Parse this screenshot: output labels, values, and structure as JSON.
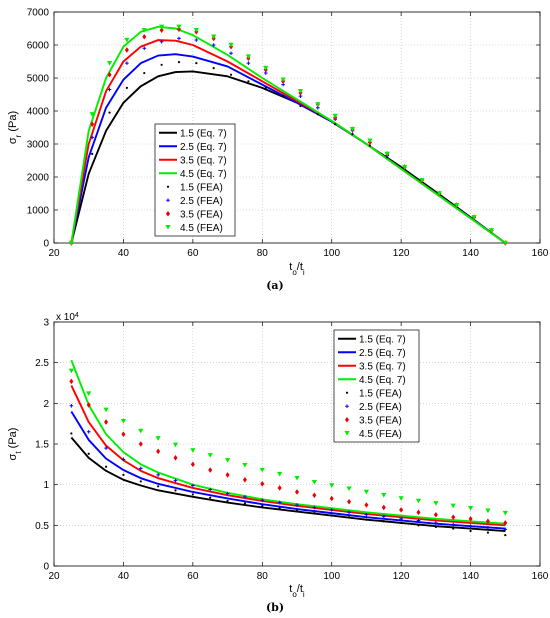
{
  "chart_data": [
    {
      "type": "line",
      "caption": "(a)",
      "ylabel_main": "σ",
      "ylabel_sub": "r",
      "ylabel_unit": " (Pa)",
      "xlabel_main": "t",
      "xlabel_sub1": "o",
      "xlabel_mid": "/t",
      "xlabel_sub2": "i",
      "xlim": [
        20,
        160
      ],
      "ylim": [
        0,
        7000
      ],
      "xticks": [
        20,
        40,
        60,
        80,
        100,
        120,
        140,
        160
      ],
      "yticks": [
        0,
        1000,
        2000,
        3000,
        4000,
        5000,
        6000,
        7000
      ],
      "grid": true,
      "legend_position": "center-left",
      "series": [
        {
          "name": "1.5 (Eq. 7)",
          "style": "line",
          "color": "#000000",
          "x": [
            25,
            30,
            35,
            40,
            45,
            50,
            55,
            60,
            70,
            80,
            90,
            100,
            110,
            120,
            130,
            140,
            150
          ],
          "y": [
            0,
            2100,
            3400,
            4250,
            4750,
            5050,
            5180,
            5200,
            5050,
            4700,
            4250,
            3680,
            3000,
            2300,
            1550,
            780,
            0
          ]
        },
        {
          "name": "2.5 (Eq. 7)",
          "style": "line",
          "color": "#0000ff",
          "x": [
            25,
            30,
            35,
            40,
            45,
            50,
            55,
            60,
            70,
            80,
            90,
            100,
            110,
            120,
            130,
            140,
            150
          ],
          "y": [
            0,
            2600,
            4100,
            4950,
            5450,
            5680,
            5720,
            5650,
            5350,
            4800,
            4250,
            3680,
            3000,
            2250,
            1500,
            760,
            0
          ]
        },
        {
          "name": "3.5 (Eq. 7)",
          "style": "line",
          "color": "#ff0000",
          "x": [
            25,
            30,
            35,
            40,
            45,
            50,
            55,
            60,
            70,
            80,
            90,
            100,
            110,
            120,
            130,
            140,
            150
          ],
          "y": [
            0,
            3000,
            4600,
            5500,
            5950,
            6150,
            6130,
            6000,
            5500,
            4900,
            4300,
            3700,
            3000,
            2250,
            1500,
            750,
            0
          ]
        },
        {
          "name": "4.5 (Eq. 7)",
          "style": "line",
          "color": "#00ee00",
          "x": [
            25,
            30,
            35,
            40,
            45,
            50,
            55,
            60,
            70,
            80,
            90,
            100,
            110,
            120,
            130,
            140,
            150
          ],
          "y": [
            0,
            3400,
            5000,
            5950,
            6400,
            6550,
            6500,
            6300,
            5700,
            5000,
            4350,
            3700,
            3000,
            2250,
            1500,
            750,
            0
          ]
        },
        {
          "name": "1.5 (FEA)",
          "style": "dot",
          "color": "#000000",
          "x": [
            25,
            31,
            36,
            41,
            46,
            51,
            56,
            61,
            66,
            71,
            76,
            81,
            86,
            91,
            96,
            101,
            106,
            111,
            116,
            121,
            126,
            131,
            136,
            141,
            146,
            150
          ],
          "y": [
            0,
            2700,
            3950,
            4700,
            5150,
            5400,
            5480,
            5450,
            5300,
            5100,
            4900,
            4700,
            4450,
            4150,
            3900,
            3600,
            3300,
            2950,
            2600,
            2250,
            1850,
            1500,
            1150,
            780,
            380,
            0
          ]
        },
        {
          "name": "2.5 (FEA)",
          "style": "plus",
          "color": "#0000ff",
          "x": [
            25,
            31,
            36,
            41,
            46,
            51,
            56,
            61,
            66,
            71,
            76,
            81,
            86,
            91,
            96,
            101,
            106,
            111,
            116,
            121,
            126,
            131,
            136,
            141,
            146,
            150
          ],
          "y": [
            0,
            3200,
            4650,
            5450,
            5900,
            6100,
            6200,
            6150,
            6000,
            5750,
            5450,
            5150,
            4800,
            4450,
            4100,
            3750,
            3400,
            3050,
            2650,
            2300,
            1900,
            1500,
            1150,
            780,
            380,
            0
          ]
        },
        {
          "name": "3.5 (FEA)",
          "style": "diamond",
          "color": "#ee0000",
          "x": [
            25,
            31,
            36,
            41,
            46,
            51,
            56,
            61,
            66,
            71,
            76,
            81,
            86,
            91,
            96,
            101,
            106,
            111,
            116,
            121,
            126,
            131,
            136,
            141,
            146,
            150
          ],
          "y": [
            0,
            3600,
            5100,
            5850,
            6250,
            6450,
            6480,
            6400,
            6200,
            5950,
            5600,
            5250,
            4900,
            4550,
            4200,
            3800,
            3450,
            3050,
            2700,
            2300,
            1900,
            1500,
            1150,
            780,
            380,
            0
          ]
        },
        {
          "name": "4.5 (FEA)",
          "style": "triangle",
          "color": "#00ee00",
          "x": [
            25,
            31,
            36,
            41,
            46,
            51,
            56,
            61,
            66,
            71,
            76,
            81,
            86,
            91,
            96,
            101,
            106,
            111,
            116,
            121,
            126,
            131,
            136,
            141,
            146,
            150
          ],
          "y": [
            0,
            3900,
            5450,
            6150,
            6450,
            6550,
            6550,
            6450,
            6250,
            6000,
            5650,
            5300,
            4950,
            4600,
            4200,
            3850,
            3450,
            3100,
            2700,
            2300,
            1900,
            1500,
            1150,
            780,
            380,
            0
          ]
        }
      ]
    },
    {
      "type": "line",
      "caption": "(b)",
      "ylabel_main": "σ",
      "ylabel_sub": "t",
      "ylabel_unit": " (Pa)",
      "xlabel_main": "t",
      "xlabel_sub1": "o",
      "xlabel_mid": "/t",
      "xlabel_sub2": "i",
      "exponent_base": "x 10",
      "exponent_power": "4",
      "xlim": [
        20,
        160
      ],
      "ylim": [
        0,
        3
      ],
      "xticks": [
        20,
        40,
        60,
        80,
        100,
        120,
        140,
        160
      ],
      "yticks": [
        0,
        0.5,
        1,
        1.5,
        2,
        2.5,
        3
      ],
      "grid": true,
      "legend_position": "top-right",
      "series": [
        {
          "name": "1.5 (Eq. 7)",
          "style": "line",
          "color": "#000000",
          "x": [
            25,
            30,
            35,
            40,
            45,
            50,
            60,
            70,
            80,
            90,
            100,
            110,
            120,
            130,
            140,
            150
          ],
          "y": [
            1.58,
            1.33,
            1.17,
            1.06,
            0.99,
            0.93,
            0.85,
            0.78,
            0.72,
            0.67,
            0.62,
            0.57,
            0.53,
            0.49,
            0.46,
            0.43
          ]
        },
        {
          "name": "2.5 (Eq. 7)",
          "style": "line",
          "color": "#0000ff",
          "x": [
            25,
            30,
            35,
            40,
            45,
            50,
            60,
            70,
            80,
            90,
            100,
            110,
            120,
            130,
            140,
            150
          ],
          "y": [
            1.9,
            1.55,
            1.32,
            1.18,
            1.08,
            1.01,
            0.91,
            0.83,
            0.76,
            0.7,
            0.65,
            0.6,
            0.56,
            0.52,
            0.49,
            0.46
          ]
        },
        {
          "name": "3.5 (Eq. 7)",
          "style": "line",
          "color": "#ff0000",
          "x": [
            25,
            30,
            35,
            40,
            45,
            50,
            60,
            70,
            80,
            90,
            100,
            110,
            120,
            130,
            140,
            150
          ],
          "y": [
            2.22,
            1.77,
            1.48,
            1.3,
            1.17,
            1.08,
            0.96,
            0.87,
            0.8,
            0.74,
            0.69,
            0.64,
            0.6,
            0.56,
            0.53,
            0.5
          ]
        },
        {
          "name": "4.5 (Eq. 7)",
          "style": "line",
          "color": "#00ee00",
          "x": [
            25,
            30,
            35,
            40,
            45,
            50,
            60,
            70,
            80,
            90,
            100,
            110,
            120,
            130,
            140,
            150
          ],
          "y": [
            2.53,
            1.98,
            1.62,
            1.4,
            1.25,
            1.15,
            1.0,
            0.9,
            0.82,
            0.76,
            0.71,
            0.66,
            0.62,
            0.58,
            0.55,
            0.52
          ]
        },
        {
          "name": "1.5 (FEA)",
          "style": "dot",
          "color": "#000000",
          "x": [
            25,
            30,
            35,
            40,
            45,
            50,
            55,
            60,
            65,
            70,
            75,
            80,
            85,
            90,
            95,
            100,
            105,
            110,
            115,
            120,
            125,
            130,
            135,
            140,
            145,
            150
          ],
          "y": [
            1.63,
            1.38,
            1.22,
            1.12,
            1.04,
            0.98,
            0.93,
            0.88,
            0.84,
            0.8,
            0.77,
            0.74,
            0.71,
            0.68,
            0.65,
            0.62,
            0.6,
            0.57,
            0.55,
            0.53,
            0.5,
            0.48,
            0.46,
            0.43,
            0.41,
            0.38
          ]
        },
        {
          "name": "2.5 (FEA)",
          "style": "plus",
          "color": "#0000ff",
          "x": [
            25,
            30,
            35,
            40,
            45,
            50,
            55,
            60,
            65,
            70,
            75,
            80,
            85,
            90,
            95,
            100,
            105,
            110,
            115,
            120,
            125,
            130,
            135,
            140,
            145,
            150
          ],
          "y": [
            1.97,
            1.65,
            1.45,
            1.31,
            1.2,
            1.12,
            1.05,
            0.99,
            0.94,
            0.89,
            0.85,
            0.81,
            0.78,
            0.75,
            0.72,
            0.69,
            0.66,
            0.63,
            0.61,
            0.58,
            0.56,
            0.53,
            0.51,
            0.49,
            0.47,
            0.45
          ]
        },
        {
          "name": "3.5 (FEA)",
          "style": "diamond",
          "color": "#ee0000",
          "x": [
            25,
            30,
            35,
            40,
            45,
            50,
            55,
            60,
            65,
            70,
            75,
            80,
            85,
            90,
            95,
            100,
            105,
            110,
            115,
            120,
            125,
            130,
            135,
            140,
            145,
            150
          ],
          "y": [
            2.27,
            1.98,
            1.77,
            1.62,
            1.5,
            1.41,
            1.33,
            1.25,
            1.18,
            1.12,
            1.06,
            1.01,
            0.96,
            0.91,
            0.87,
            0.83,
            0.79,
            0.75,
            0.72,
            0.69,
            0.66,
            0.63,
            0.6,
            0.58,
            0.55,
            0.53
          ]
        },
        {
          "name": "4.5 (FEA)",
          "style": "triangle",
          "color": "#00ee00",
          "x": [
            25,
            30,
            35,
            40,
            45,
            50,
            55,
            60,
            65,
            70,
            75,
            80,
            85,
            90,
            95,
            100,
            105,
            110,
            115,
            120,
            125,
            130,
            135,
            140,
            145,
            150
          ],
          "y": [
            2.4,
            2.12,
            1.92,
            1.78,
            1.66,
            1.57,
            1.49,
            1.42,
            1.36,
            1.3,
            1.24,
            1.18,
            1.13,
            1.08,
            1.03,
            0.99,
            0.95,
            0.91,
            0.87,
            0.83,
            0.8,
            0.77,
            0.74,
            0.71,
            0.68,
            0.65
          ]
        }
      ]
    }
  ]
}
